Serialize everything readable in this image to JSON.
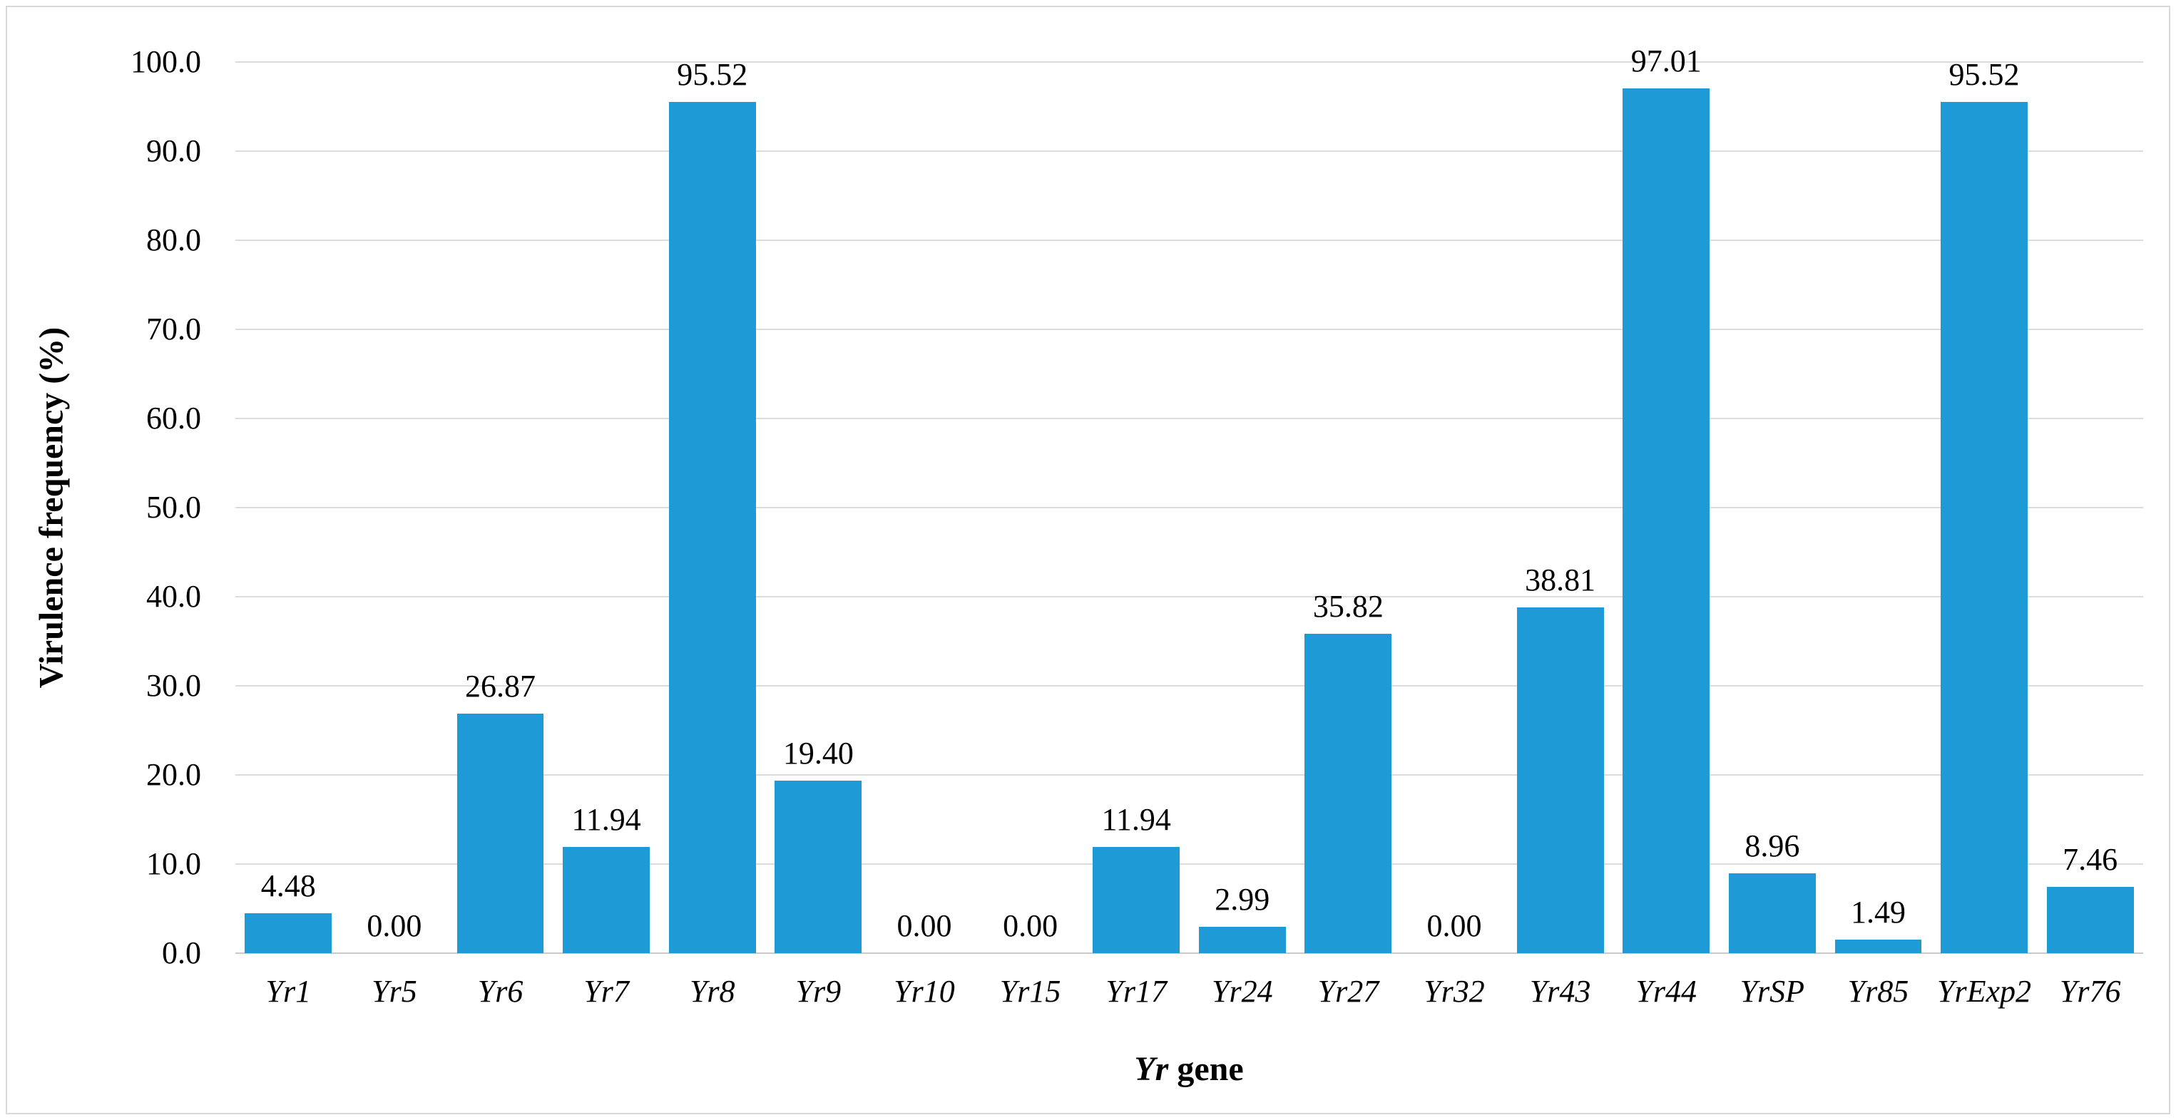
{
  "chart_data": {
    "type": "bar",
    "title": "",
    "categories": [
      "Yr1",
      "Yr5",
      "Yr6",
      "Yr7",
      "Yr8",
      "Yr9",
      "Yr10",
      "Yr15",
      "Yr17",
      "Yr24",
      "Yr27",
      "Yr32",
      "Yr43",
      "Yr44",
      "YrSP",
      "Yr85",
      "YrExp2",
      "Yr76"
    ],
    "values": [
      4.48,
      0.0,
      26.87,
      11.94,
      95.52,
      19.4,
      0.0,
      0.0,
      11.94,
      2.99,
      35.82,
      0.0,
      38.81,
      97.01,
      8.96,
      1.49,
      95.52,
      7.46
    ],
    "value_labels": [
      "4.48",
      "0.00",
      "26.87",
      "11.94",
      "95.52",
      "19.40",
      "0.00",
      "0.00",
      "11.94",
      "2.99",
      "35.82",
      "0.00",
      "38.81",
      "97.01",
      "8.96",
      "1.49",
      "95.52",
      "7.46"
    ],
    "ylabel": "Virulence frequency (%)",
    "xlabel_italic": "Yr",
    "xlabel_rest": " gene",
    "ylim": [
      0,
      100
    ],
    "y_tick_step": 10,
    "y_tick_labels": [
      "0.0",
      "10.0",
      "20.0",
      "30.0",
      "40.0",
      "50.0",
      "60.0",
      "70.0",
      "80.0",
      "90.0",
      "100.0"
    ],
    "grid": "horizontal",
    "legend": "none",
    "bar_color": "#1e9bd7",
    "gridline_color": "#dcdcdc"
  }
}
